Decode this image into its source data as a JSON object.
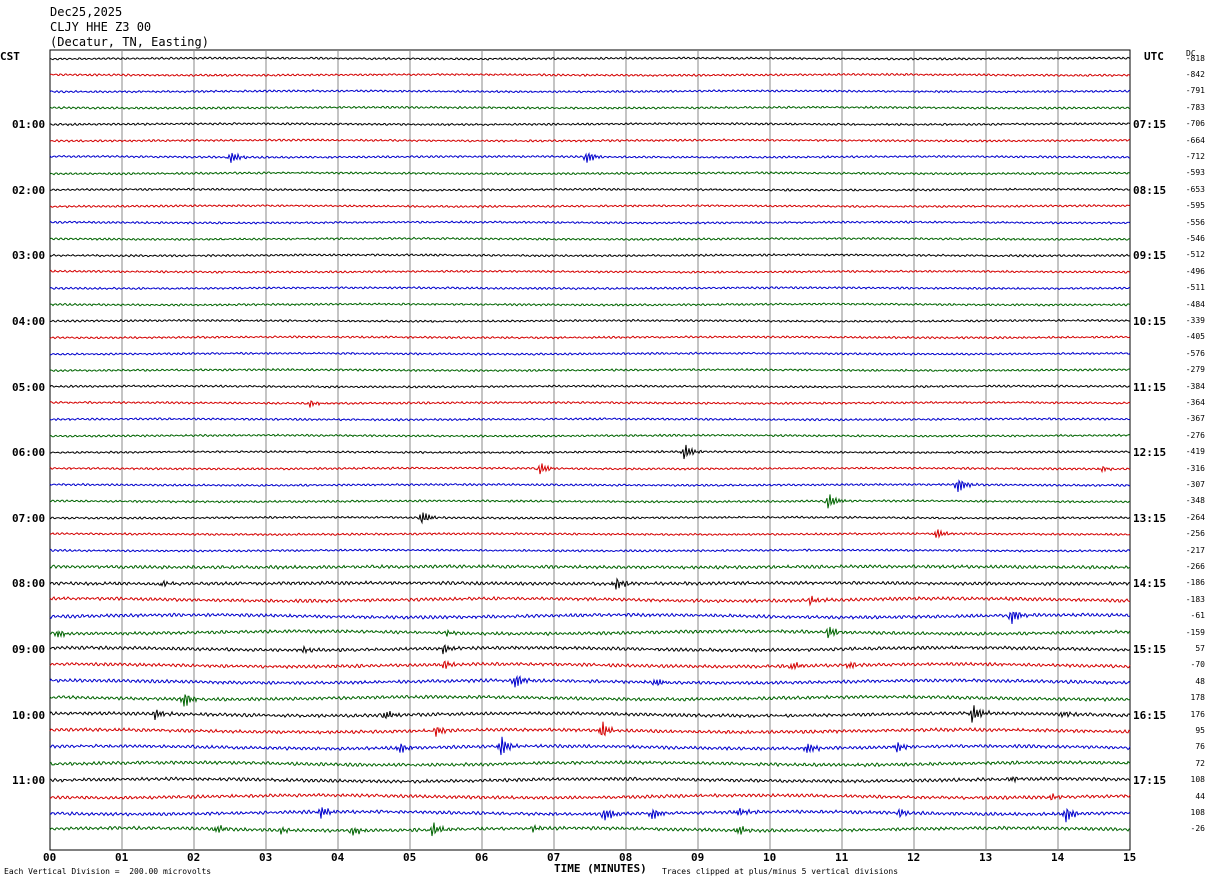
{
  "header": {
    "date": "Dec25,2025",
    "station": "CLJY HHE Z3 00",
    "location": "(Decatur, TN, Easting)"
  },
  "left_tz": "CST",
  "right_tz": "UTC",
  "dc_label": "DC",
  "footer": {
    "division": "Each Vertical Division =  200.00 microvolts",
    "xtitle": "TIME (MINUTES)",
    "clip": "Traces clipped at plus/minus 5 vertical divisions"
  },
  "colors": {
    "cycle": [
      "#000000",
      "#d40000",
      "#0000cc",
      "#006400"
    ],
    "grid": "#888888"
  },
  "chart_data": {
    "type": "line",
    "title": "CLJY HHE Z3 00",
    "xlabel": "TIME (MINUTES)",
    "xlim": [
      0,
      15
    ],
    "x_ticks": [
      "00",
      "01",
      "02",
      "03",
      "04",
      "05",
      "06",
      "07",
      "08",
      "09",
      "10",
      "11",
      "12",
      "13",
      "14",
      "15"
    ],
    "left_hour_labels": [
      "01:00",
      "02:00",
      "03:00",
      "04:00",
      "05:00",
      "06:00",
      "07:00",
      "08:00",
      "09:00",
      "10:00",
      "11:00"
    ],
    "right_hour_labels": [
      "07:15",
      "08:15",
      "09:15",
      "10:15",
      "11:15",
      "12:15",
      "13:15",
      "14:15",
      "15:15",
      "16:15",
      "17:15"
    ],
    "dc_offsets": [
      -818,
      -842,
      -791,
      -783,
      -706,
      -664,
      -712,
      -593,
      -653,
      -595,
      -556,
      -546,
      -512,
      -496,
      -511,
      -484,
      -339,
      -405,
      -576,
      -279,
      -384,
      -364,
      -367,
      -276,
      -419,
      -316,
      -307,
      -348,
      -264,
      -256,
      -217,
      -266,
      -186,
      -183,
      -61,
      -159,
      57,
      -70,
      48,
      178,
      176,
      95,
      76,
      72,
      108,
      44,
      108,
      -26
    ],
    "events": [
      {
        "trace": 6,
        "minute": 2.5,
        "amp": 7
      },
      {
        "trace": 6,
        "minute": 7.45,
        "amp": 7
      },
      {
        "trace": 21,
        "minute": 3.6,
        "amp": 4
      },
      {
        "trace": 24,
        "minute": 8.8,
        "amp": 9
      },
      {
        "trace": 25,
        "minute": 6.8,
        "amp": 7
      },
      {
        "trace": 25,
        "minute": 14.6,
        "amp": 3
      },
      {
        "trace": 26,
        "minute": 12.6,
        "amp": 9
      },
      {
        "trace": 27,
        "minute": 10.8,
        "amp": 9
      },
      {
        "trace": 28,
        "minute": 5.15,
        "amp": 8
      },
      {
        "trace": 29,
        "minute": 12.3,
        "amp": 6
      },
      {
        "trace": 32,
        "minute": 1.55,
        "amp": 4
      },
      {
        "trace": 32,
        "minute": 7.85,
        "amp": 7
      },
      {
        "trace": 33,
        "minute": 10.55,
        "amp": 5
      },
      {
        "trace": 34,
        "minute": 13.35,
        "amp": 9
      },
      {
        "trace": 35,
        "minute": 0.1,
        "amp": 5
      },
      {
        "trace": 35,
        "minute": 5.5,
        "amp": 3
      },
      {
        "trace": 35,
        "minute": 10.8,
        "amp": 7
      },
      {
        "trace": 36,
        "minute": 3.5,
        "amp": 4
      },
      {
        "trace": 36,
        "minute": 5.45,
        "amp": 6
      },
      {
        "trace": 37,
        "minute": 5.45,
        "amp": 5
      },
      {
        "trace": 37,
        "minute": 10.3,
        "amp": 5
      },
      {
        "trace": 37,
        "minute": 11.1,
        "amp": 4
      },
      {
        "trace": 38,
        "minute": 6.45,
        "amp": 9
      },
      {
        "trace": 38,
        "minute": 8.4,
        "amp": 5
      },
      {
        "trace": 39,
        "minute": 1.85,
        "amp": 9
      },
      {
        "trace": 40,
        "minute": 1.45,
        "amp": 6
      },
      {
        "trace": 40,
        "minute": 4.65,
        "amp": 6
      },
      {
        "trace": 40,
        "minute": 12.8,
        "amp": 11
      },
      {
        "trace": 40,
        "minute": 14.05,
        "amp": 4
      },
      {
        "trace": 41,
        "minute": 5.35,
        "amp": 6
      },
      {
        "trace": 41,
        "minute": 7.65,
        "amp": 10
      },
      {
        "trace": 42,
        "minute": 4.85,
        "amp": 6
      },
      {
        "trace": 42,
        "minute": 6.25,
        "amp": 12
      },
      {
        "trace": 42,
        "minute": 10.5,
        "amp": 7
      },
      {
        "trace": 42,
        "minute": 11.75,
        "amp": 6
      },
      {
        "trace": 44,
        "minute": 13.35,
        "amp": 3
      },
      {
        "trace": 45,
        "minute": 13.9,
        "amp": 4
      },
      {
        "trace": 46,
        "minute": 3.75,
        "amp": 7
      },
      {
        "trace": 46,
        "minute": 7.7,
        "amp": 8
      },
      {
        "trace": 46,
        "minute": 8.35,
        "amp": 7
      },
      {
        "trace": 46,
        "minute": 9.55,
        "amp": 5
      },
      {
        "trace": 46,
        "minute": 11.8,
        "amp": 5
      },
      {
        "trace": 46,
        "minute": 14.1,
        "amp": 9
      },
      {
        "trace": 47,
        "minute": 2.3,
        "amp": 5
      },
      {
        "trace": 47,
        "minute": 3.2,
        "amp": 4
      },
      {
        "trace": 47,
        "minute": 4.2,
        "amp": 5
      },
      {
        "trace": 47,
        "minute": 5.3,
        "amp": 8
      },
      {
        "trace": 47,
        "minute": 6.7,
        "amp": 4
      },
      {
        "trace": 47,
        "minute": 9.55,
        "amp": 6
      }
    ]
  }
}
